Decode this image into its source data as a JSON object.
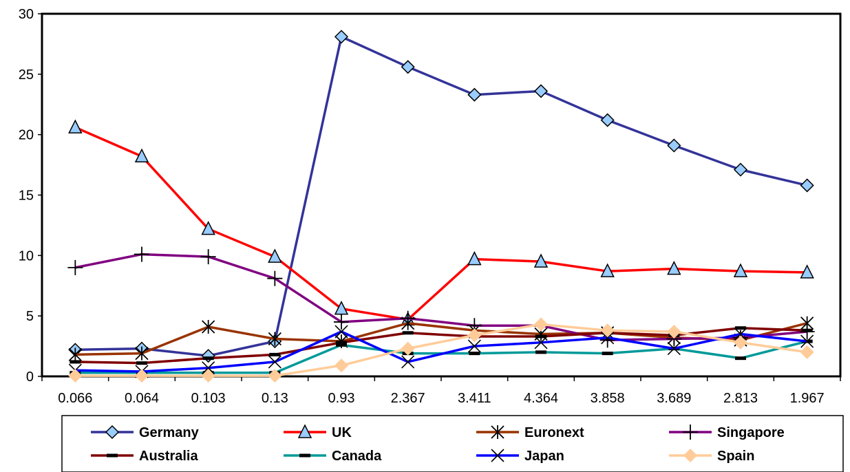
{
  "chart_data": {
    "type": "line",
    "title": "",
    "xlabel": "",
    "ylabel": "",
    "categories": [
      "0.066",
      "0.064",
      "0.103",
      "0.13",
      "0.93",
      "2.367",
      "3.411",
      "4.364",
      "3.858",
      "3.689",
      "2.813",
      "1.967"
    ],
    "ylim": [
      0,
      30
    ],
    "yticks": [
      "0",
      "5",
      "10",
      "15",
      "20",
      "25",
      "30"
    ],
    "grid": false,
    "legend_position": "bottom",
    "series": [
      {
        "name": "Germany",
        "color": "#33339a",
        "marker": "diamond",
        "values": [
          2.2,
          2.3,
          1.7,
          2.9,
          28.1,
          25.6,
          23.3,
          23.6,
          21.2,
          19.1,
          17.1,
          15.8
        ]
      },
      {
        "name": "UK",
        "color": "#ff0000",
        "marker": "triangle",
        "values": [
          20.6,
          18.2,
          12.2,
          9.9,
          5.6,
          4.7,
          9.7,
          9.5,
          8.7,
          8.9,
          8.7,
          8.6
        ]
      },
      {
        "name": "Euronext",
        "color": "#993300",
        "marker": "star",
        "values": [
          1.8,
          1.9,
          4.1,
          3.1,
          2.9,
          4.4,
          3.8,
          3.5,
          3.6,
          3.2,
          3.0,
          4.4
        ]
      },
      {
        "name": "Singapore",
        "color": "#800080",
        "marker": "plus",
        "values": [
          9.0,
          10.1,
          9.9,
          8.1,
          4.5,
          4.8,
          4.2,
          4.2,
          3.0,
          3.1,
          3.2,
          3.7
        ]
      },
      {
        "name": "Australia",
        "color": "#800000",
        "marker": "dash",
        "values": [
          1.2,
          1.1,
          1.5,
          1.8,
          2.8,
          3.6,
          3.3,
          3.3,
          3.6,
          3.4,
          4.0,
          3.8
        ]
      },
      {
        "name": "Canada",
        "color": "#009999",
        "marker": "dash",
        "values": [
          0.3,
          0.3,
          0.3,
          0.3,
          2.6,
          1.9,
          1.9,
          2.0,
          1.9,
          2.3,
          1.5,
          2.9
        ]
      },
      {
        "name": "Japan",
        "color": "#0000ff",
        "marker": "x",
        "values": [
          0.5,
          0.4,
          0.7,
          1.2,
          3.7,
          1.2,
          2.5,
          2.8,
          3.2,
          2.3,
          3.5,
          2.9
        ]
      },
      {
        "name": "Spain",
        "color": "#ffcc99",
        "marker": "diamond",
        "values": [
          0.05,
          0.05,
          0.05,
          0.05,
          0.9,
          2.3,
          3.4,
          4.3,
          3.8,
          3.7,
          2.8,
          2.0
        ]
      }
    ]
  }
}
